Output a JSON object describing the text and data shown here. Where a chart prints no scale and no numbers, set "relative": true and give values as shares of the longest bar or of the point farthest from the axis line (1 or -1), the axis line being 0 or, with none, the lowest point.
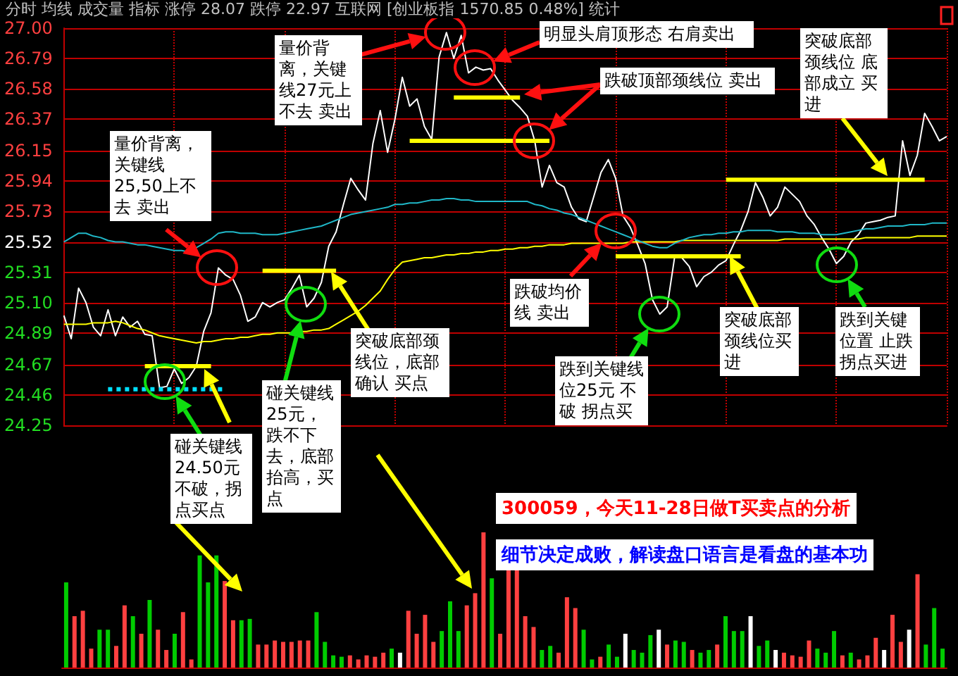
{
  "chart_data": [
    {
      "type": "line",
      "categories": [
        null,
        null,
        null,
        null,
        null,
        null,
        null,
        null,
        null,
        null,
        null,
        null,
        null,
        null,
        null,
        null,
        null,
        null,
        null,
        null,
        null,
        null,
        null,
        null,
        null,
        null,
        null,
        null,
        null,
        null,
        null,
        null,
        null,
        null,
        null,
        null,
        null,
        null,
        null,
        null,
        null,
        null,
        null,
        null,
        null,
        null,
        null,
        null,
        null,
        null,
        null,
        null,
        null,
        null,
        null,
        null,
        null,
        null,
        null,
        null,
        null,
        null,
        null,
        null,
        null,
        null,
        null,
        null,
        null,
        null,
        null,
        null,
        null,
        null,
        null,
        null,
        null,
        null,
        null,
        null,
        null,
        null,
        null,
        null,
        null,
        null,
        null,
        null,
        null,
        null,
        null,
        null,
        null,
        null,
        null,
        null,
        null,
        null,
        null,
        null,
        null,
        null,
        null,
        null,
        null,
        null,
        null,
        null,
        null,
        null,
        null,
        null,
        null,
        null,
        null,
        null,
        null,
        null,
        null,
        null,
        null
      ],
      "ylim": [
        24.25,
        27
      ],
      "yticks": [
        {
          "value": 27,
          "label": "27.00"
        },
        26.79,
        26.58,
        26.37,
        26.15,
        25.94,
        25.73,
        25.52,
        25.31,
        {
          "value": 25.1,
          "label": "25.10"
        },
        24.89,
        24.67,
        24.46,
        24.25
      ],
      "grid": true,
      "tick_labels": "y",
      "annotations": [
        "分时 均线 成交量 指标 涨停 28.07 跌停 22.97 互联网 [创业板指 1570.85 0.48%] 统计",
        "量价背离，关键线25,50上不去 卖出",
        "量价背离，关键线27元上不去 卖出",
        "明显头肩顶形态 右肩卖出",
        "跌破顶部颈线位 卖出",
        "突破底部颈线位 底部成立 买进",
        "跌破均价线 卖出",
        "跌到关键线位25元 不破 拐点买",
        "突破底部颈线位买进",
        "跌到关键位置 止跌拐点买进",
        "突破底部颈线位，底部确认 买点",
        "碰关键线25元，跌不下去，底部抬高，买点",
        "碰关键线24.50元不破，拐点买点",
        "300059，今天11-28日做T买卖点的分析",
        "细节决定成败，解读盘口语言是看盘的基本功"
      ],
      "series": [
        {
          "color": "#ffffff",
          "values": [
            25.01,
            24.85,
            25.2,
            25.1,
            24.93,
            24.87,
            25.05,
            24.87,
            25.0,
            24.93,
            24.97,
            24.88,
            24.87,
            24.51,
            24.52,
            24.64,
            24.54,
            24.58,
            24.66,
            24.9,
            25.03,
            25.34,
            25.29,
            25.26,
            25.15,
            24.97,
            25.0,
            25.1,
            25.07,
            25.1,
            25.12,
            25.2,
            25.29,
            25.07,
            25.13,
            25.24,
            25.49,
            25.59,
            25.78,
            25.96,
            25.88,
            25.81,
            26.2,
            26.43,
            26.14,
            26.37,
            26.66,
            26.46,
            26.51,
            26.32,
            26.23,
            26.8,
            26.97,
            26.79,
            26.95,
            26.69,
            26.73,
            26.71,
            26.72,
            26.64,
            26.57,
            26.5,
            26.45,
            26.39,
            26.22,
            25.9,
            26.05,
            25.93,
            25.9,
            25.76,
            25.68,
            25.66,
            25.83,
            26.0,
            26.09,
            25.96,
            25.7,
            25.62,
            25.5,
            25.37,
            25.12,
            25.02,
            25.07,
            25.41,
            25.41,
            25.35,
            25.21,
            25.28,
            25.31,
            25.36,
            25.39,
            25.5,
            25.6,
            25.73,
            25.93,
            25.83,
            25.7,
            25.76,
            25.9,
            25.85,
            25.8,
            25.7,
            25.64,
            25.55,
            25.47,
            25.37,
            25.42,
            25.52,
            25.57,
            25.65,
            25.66,
            25.67,
            25.69,
            25.7,
            26.22,
            25.98,
            26.12,
            26.41,
            26.32,
            26.22,
            26.25
          ]
        },
        {
          "color": "#ffff00",
          "values": [
            24.95,
            24.95,
            24.95,
            24.95,
            24.96,
            24.96,
            24.96,
            24.97,
            24.96,
            24.94,
            24.92,
            24.91,
            24.89,
            24.87,
            24.86,
            24.85,
            24.84,
            24.83,
            24.82,
            24.83,
            24.83,
            24.84,
            24.85,
            24.85,
            24.86,
            24.86,
            24.87,
            24.88,
            24.88,
            24.89,
            24.89,
            24.89,
            24.9,
            24.9,
            24.91,
            24.91,
            24.92,
            24.95,
            24.98,
            25.01,
            25.04,
            25.08,
            25.13,
            25.18,
            25.26,
            25.33,
            25.38,
            25.39,
            25.4,
            25.41,
            25.41,
            25.42,
            25.43,
            25.43,
            25.44,
            25.44,
            25.45,
            25.45,
            25.46,
            25.46,
            25.47,
            25.47,
            25.48,
            25.48,
            25.49,
            25.49,
            25.5,
            25.5,
            25.5,
            25.51,
            25.51,
            25.51,
            25.51,
            25.51,
            25.51,
            25.51,
            25.51,
            25.52,
            25.52,
            25.52,
            25.52,
            25.52,
            25.52,
            25.52,
            25.53,
            25.53,
            25.53,
            25.53,
            25.53,
            25.53,
            25.53,
            25.53,
            25.53,
            25.53,
            25.53,
            25.53,
            25.53,
            25.53,
            25.54,
            25.54,
            25.54,
            25.54,
            25.54,
            25.54,
            25.54,
            25.54,
            25.54,
            25.54,
            25.54,
            25.55,
            25.55,
            25.55,
            25.55,
            25.55,
            25.55,
            25.55,
            25.56,
            25.56,
            25.56,
            25.56,
            25.56
          ]
        },
        {
          "color": "#20b8c8",
          "values": [
            25.52,
            25.55,
            25.58,
            25.58,
            25.56,
            25.55,
            25.53,
            25.52,
            25.52,
            25.51,
            25.5,
            25.5,
            25.49,
            25.48,
            25.47,
            25.46,
            25.46,
            25.45,
            25.48,
            25.51,
            25.54,
            25.58,
            25.59,
            25.59,
            25.58,
            25.58,
            25.58,
            25.57,
            25.57,
            25.57,
            25.58,
            25.59,
            25.6,
            25.61,
            25.62,
            25.63,
            25.65,
            25.67,
            25.69,
            25.71,
            25.72,
            25.73,
            25.74,
            25.75,
            25.76,
            25.78,
            25.78,
            25.79,
            25.79,
            25.8,
            25.81,
            25.81,
            25.82,
            25.82,
            25.81,
            25.81,
            25.8,
            25.8,
            25.8,
            25.8,
            25.8,
            25.8,
            25.8,
            25.8,
            25.78,
            25.77,
            25.75,
            25.74,
            25.72,
            25.71,
            25.69,
            25.67,
            25.65,
            25.63,
            25.61,
            25.59,
            25.57,
            25.55,
            25.53,
            25.51,
            25.49,
            25.48,
            25.48,
            25.51,
            25.53,
            25.55,
            25.56,
            25.57,
            25.57,
            25.58,
            25.58,
            25.59,
            25.59,
            25.6,
            25.6,
            25.6,
            25.6,
            25.59,
            25.59,
            25.59,
            25.58,
            25.58,
            25.58,
            25.57,
            25.57,
            25.57,
            25.58,
            25.59,
            25.6,
            25.61,
            25.61,
            25.62,
            25.63,
            25.63,
            25.63,
            25.64,
            25.64,
            25.64,
            25.65,
            25.65,
            25.65
          ]
        },
        {
          "color": "#ffff00",
          "values": [
            null,
            null,
            null,
            null,
            null,
            null,
            null,
            null,
            null,
            null,
            null,
            24.66,
            24.66,
            24.66,
            24.66,
            24.66,
            24.66,
            24.66,
            24.66,
            24.66,
            24.66,
            null,
            null,
            null,
            null,
            null,
            null,
            null,
            null,
            null,
            null,
            null,
            null,
            null,
            null,
            null,
            null,
            null,
            null,
            null,
            null,
            null,
            null,
            null,
            null,
            null,
            null,
            null,
            null,
            null,
            null,
            null,
            null,
            null,
            null,
            null,
            null,
            null,
            null,
            null,
            null,
            null,
            null,
            null,
            null,
            null,
            null,
            null,
            null,
            null,
            null,
            null,
            null,
            null,
            null,
            null,
            null,
            null,
            null,
            null,
            null,
            null,
            null,
            null,
            null,
            null,
            null,
            null,
            null,
            null,
            null,
            null,
            null,
            null,
            null,
            null,
            null,
            null,
            null,
            null,
            null,
            null,
            null,
            null,
            null,
            null,
            null,
            null,
            null,
            null,
            null,
            null,
            null,
            null,
            null,
            null,
            null,
            null,
            null,
            null,
            null
          ]
        },
        {
          "color": "#ffff00",
          "values": [
            null,
            null,
            null,
            null,
            null,
            null,
            null,
            null,
            null,
            null,
            null,
            null,
            null,
            null,
            null,
            null,
            null,
            null,
            null,
            null,
            null,
            null,
            null,
            null,
            null,
            null,
            null,
            25.32,
            25.32,
            25.32,
            25.32,
            25.32,
            25.32,
            25.32,
            25.32,
            25.32,
            25.32,
            25.32,
            null,
            null,
            null,
            null,
            null,
            null,
            null,
            null,
            null,
            null,
            null,
            null,
            null,
            null,
            null,
            null,
            null,
            null,
            null,
            null,
            null,
            null,
            null,
            null,
            null,
            null,
            null,
            null,
            null,
            null,
            null,
            null,
            null,
            null,
            null,
            null,
            null,
            null,
            null,
            null,
            null,
            null,
            null,
            null,
            null,
            null,
            null,
            null,
            null,
            null,
            null,
            null,
            null,
            null,
            null,
            null,
            null,
            null,
            null,
            null,
            null,
            null,
            null,
            null,
            null,
            null,
            null,
            null,
            null,
            null,
            null,
            null,
            null,
            null,
            null,
            null,
            null,
            null,
            null,
            null,
            null,
            null,
            null
          ]
        },
        {
          "color": "#ffff00",
          "values": [
            null,
            null,
            null,
            null,
            null,
            null,
            null,
            null,
            null,
            null,
            null,
            null,
            null,
            null,
            null,
            null,
            null,
            null,
            null,
            null,
            null,
            null,
            null,
            null,
            null,
            null,
            null,
            null,
            null,
            null,
            null,
            null,
            null,
            null,
            null,
            null,
            null,
            null,
            null,
            null,
            null,
            null,
            null,
            null,
            null,
            null,
            null,
            null,
            null,
            null,
            null,
            null,
            null,
            26.52,
            26.52,
            26.52,
            26.52,
            26.52,
            26.52,
            26.52,
            26.52,
            26.52,
            26.52,
            null,
            null,
            null,
            null,
            null,
            null,
            null,
            null,
            null,
            null,
            null,
            null,
            null,
            null,
            null,
            null,
            null,
            null,
            null,
            null,
            null,
            null,
            null,
            null,
            null,
            null,
            null,
            null,
            null,
            null,
            null,
            null,
            null,
            null,
            null,
            null,
            null,
            null,
            null,
            null,
            null,
            null,
            null,
            null,
            null,
            null,
            null,
            null,
            null,
            null,
            null,
            null,
            null,
            null,
            null,
            null,
            null,
            null
          ]
        },
        {
          "color": "#ffff00",
          "values": [
            null,
            null,
            null,
            null,
            null,
            null,
            null,
            null,
            null,
            null,
            null,
            null,
            null,
            null,
            null,
            null,
            null,
            null,
            null,
            null,
            null,
            null,
            null,
            null,
            null,
            null,
            null,
            null,
            null,
            null,
            null,
            null,
            null,
            null,
            null,
            null,
            null,
            null,
            null,
            null,
            null,
            null,
            null,
            null,
            null,
            null,
            null,
            26.22,
            26.22,
            26.22,
            26.22,
            26.22,
            26.22,
            26.22,
            26.22,
            26.22,
            26.22,
            26.22,
            26.22,
            26.22,
            26.22,
            26.22,
            26.22,
            26.22,
            26.22,
            26.22,
            26.22,
            null,
            null,
            null,
            null,
            null,
            null,
            null,
            null,
            null,
            null,
            null,
            null,
            null,
            null,
            null,
            null,
            null,
            null,
            null,
            null,
            null,
            null,
            null,
            null,
            null,
            null,
            null,
            null,
            null,
            null,
            null,
            null,
            null,
            null,
            null,
            null,
            null,
            null,
            null,
            null,
            null,
            null,
            null,
            null,
            null,
            null,
            null,
            null,
            null,
            null,
            null,
            null,
            null,
            null
          ]
        },
        {
          "color": "#ffff00",
          "values": [
            null,
            null,
            null,
            null,
            null,
            null,
            null,
            null,
            null,
            null,
            null,
            null,
            null,
            null,
            null,
            null,
            null,
            null,
            null,
            null,
            null,
            null,
            null,
            null,
            null,
            null,
            null,
            null,
            null,
            null,
            null,
            null,
            null,
            null,
            null,
            null,
            null,
            null,
            null,
            null,
            null,
            null,
            null,
            null,
            null,
            null,
            null,
            null,
            null,
            null,
            null,
            null,
            null,
            null,
            null,
            null,
            null,
            null,
            null,
            null,
            null,
            null,
            null,
            null,
            null,
            null,
            null,
            null,
            null,
            null,
            null,
            null,
            null,
            null,
            null,
            null,
            null,
            null,
            null,
            null,
            null,
            null,
            null,
            null,
            null,
            null,
            null,
            null,
            null,
            null,
            25.95,
            25.95,
            25.95,
            25.95,
            25.95,
            25.95,
            25.95,
            25.95,
            25.95,
            25.95,
            25.95,
            25.95,
            25.95,
            25.95,
            25.95,
            25.95,
            25.95,
            25.95,
            25.95,
            25.95,
            25.95,
            25.95,
            25.95,
            25.95,
            25.95,
            25.95,
            25.95,
            25.95,
            null,
            null,
            null
          ]
        },
        {
          "color": "#ffff00",
          "values": [
            null,
            null,
            null,
            null,
            null,
            null,
            null,
            null,
            null,
            null,
            null,
            null,
            null,
            null,
            null,
            null,
            null,
            null,
            null,
            null,
            null,
            null,
            null,
            null,
            null,
            null,
            null,
            null,
            null,
            null,
            null,
            null,
            null,
            null,
            null,
            null,
            null,
            null,
            null,
            null,
            null,
            null,
            null,
            null,
            null,
            null,
            null,
            null,
            null,
            null,
            null,
            null,
            null,
            null,
            null,
            null,
            null,
            null,
            null,
            null,
            null,
            null,
            null,
            null,
            null,
            null,
            null,
            null,
            null,
            null,
            null,
            null,
            null,
            null,
            null,
            25.42,
            25.42,
            25.42,
            25.42,
            25.42,
            25.42,
            25.42,
            25.42,
            25.42,
            25.42,
            25.42,
            25.42,
            25.42,
            25.42,
            25.42,
            25.42,
            25.42,
            25.42,
            null,
            null,
            null,
            null,
            null,
            null,
            null,
            null,
            null,
            null,
            null,
            null,
            null,
            null,
            null,
            null,
            null,
            null,
            null,
            null,
            null,
            null,
            null,
            null,
            null,
            null,
            null,
            null
          ]
        },
        {
          "color": "#00e0ff",
          "line_style": "dotted",
          "values": [
            null,
            null,
            null,
            null,
            null,
            null,
            24.5,
            24.5,
            24.5,
            24.5,
            24.5,
            24.5,
            24.5,
            24.5,
            24.5,
            24.5,
            24.5,
            24.5,
            24.5,
            24.5,
            24.5,
            24.5,
            24.5,
            null,
            null,
            null,
            null,
            null,
            null,
            null,
            null,
            null,
            null,
            null,
            null,
            null,
            null,
            null,
            null,
            null,
            null,
            null,
            null,
            null,
            null,
            null,
            null,
            null,
            null,
            null,
            null,
            null,
            null,
            null,
            null,
            null,
            null,
            null,
            null,
            null,
            null,
            null,
            null,
            null,
            null,
            null,
            null,
            null,
            null,
            null,
            null,
            null,
            null,
            null,
            null,
            null,
            null,
            null,
            null,
            null,
            null,
            null,
            null,
            null,
            null,
            null,
            null,
            null,
            null,
            null,
            null,
            null,
            null,
            null,
            null,
            null,
            null,
            null,
            null,
            null,
            null,
            null,
            null,
            null,
            null,
            null,
            null,
            null,
            null,
            null,
            null,
            null,
            null,
            null,
            null,
            null,
            null,
            null,
            null,
            null,
            null
          ]
        }
      ]
    },
    {
      "type": "bar",
      "relative": true,
      "categories": [
        null,
        null,
        null,
        null,
        null,
        null,
        null,
        null,
        null,
        null,
        null,
        null,
        null,
        null,
        null,
        null,
        null,
        null,
        null,
        null,
        null,
        null,
        null,
        null,
        null,
        null,
        null,
        null,
        null,
        null,
        null,
        null,
        null,
        null,
        null,
        null,
        null,
        null,
        null,
        null,
        null,
        null,
        null,
        null,
        null,
        null,
        null,
        null,
        null,
        null,
        null,
        null,
        null,
        null,
        null,
        null,
        null,
        null,
        null,
        null,
        null,
        null,
        null,
        null,
        null,
        null,
        null,
        null,
        null,
        null,
        null,
        null,
        null,
        null,
        null,
        null,
        null,
        null,
        null,
        null,
        null,
        null,
        null,
        null,
        null,
        null,
        null,
        null,
        null,
        null,
        null,
        null,
        null,
        null,
        null,
        null,
        null,
        null,
        null,
        null,
        null,
        null,
        null,
        null,
        null,
        null
      ],
      "values": [
        0.63,
        0.38,
        0.42,
        0.14,
        0.28,
        0.28,
        0.16,
        0.46,
        0.38,
        0.25,
        0.5,
        0.28,
        0.13,
        0.25,
        0.41,
        0.06,
        0.83,
        0.63,
        0.83,
        0.64,
        0.35,
        0.35,
        0.36,
        0.17,
        0.17,
        0.2,
        0.19,
        0.19,
        0.2,
        0.2,
        0.41,
        0.19,
        0.09,
        0.08,
        0.09,
        0.06,
        0.09,
        0.08,
        0.11,
        0.14,
        0.11,
        0.42,
        0.25,
        0.39,
        0.19,
        0.27,
        0.49,
        0.27,
        0.46,
        0.55,
        1,
        0.66,
        0.25,
        0.72,
        0.72,
        0.38,
        0.3,
        0.13,
        0.16,
        0.11,
        0.52,
        0.44,
        0.28,
        0.06,
        0.08,
        0.17,
        0.08,
        0.25,
        0.13,
        0.11,
        0.24,
        0.28,
        0.17,
        0.2,
        0.19,
        0.13,
        0.11,
        0.13,
        0.17,
        0.38,
        0.27,
        0.27,
        0.38,
        0.16,
        0.2,
        0.13,
        0.11,
        0.09,
        0.08,
        0.2,
        0.14,
        0.11,
        0.27,
        0.09,
        0.11,
        0.06,
        0.09,
        0.22,
        0.13,
        0.39,
        0.19,
        0.28,
        0.69,
        0.17,
        0.44,
        0.14
      ],
      "colors": [
        "#00cc00",
        "#ff4040",
        "#ff4040",
        "#ff4040",
        "#00cc00",
        "#00cc00",
        "#ff4040",
        "#ff4040",
        "#00cc00",
        "#ff4040",
        "#00cc00",
        "#ff4040",
        "#ff4040",
        "#00cc00",
        "#ff4040",
        "#ff4040",
        "#00cc00",
        "#00cc00",
        "#00cc00",
        "#ff4040",
        "#ff4040",
        "#00cc00",
        "#00cc00",
        "#ff4040",
        "#ff4040",
        "#ff4040",
        "#ff4040",
        "#ff4040",
        "#ff4040",
        "#ff4040",
        "#00cc00",
        "#00cc00",
        "#00cc00",
        "#00cc00",
        "#ff4040",
        "#ff4040",
        "#ff4040",
        "#ff4040",
        "#ff4040",
        "#00cc00",
        "#ffffff",
        "#ff4040",
        "#ff4040",
        "#ff4040",
        "#ff4040",
        "#00cc00",
        "#00cc00",
        "#00cc00",
        "#ff4040",
        "#ff4040",
        "#ff4040",
        "#00cc00",
        "#ff4040",
        "#ff4040",
        "#ff4040",
        "#ff4040",
        "#ff4040",
        "#00cc00",
        "#00cc00",
        "#ff4040",
        "#ff4040",
        "#ff4040",
        "#00cc00",
        "#00cc00",
        "#ff4040",
        "#00cc00",
        "#00cc00",
        "#ffffff",
        "#00cc00",
        "#00cc00",
        "#00cc00",
        "#ffffff",
        "#ff4040",
        "#00cc00",
        "#00cc00",
        "#ff4040",
        "#00cc00",
        "#00cc00",
        "#ff4040",
        "#00cc00",
        "#00cc00",
        "#00cc00",
        "#ffffff",
        "#00cc00",
        "#00cc00",
        "#ffffff",
        "#ff4040",
        "#ff4040",
        "#ff4040",
        "#ff4040",
        "#00cc00",
        "#00cc00",
        "#00cc00",
        "#ff4040",
        "#00cc00",
        "#ff4040",
        "#ff4040",
        "#ff4040",
        "#ffffff",
        "#ff4040",
        "#ff4040",
        "#ffffff",
        "#ff4040",
        "#00cc00",
        "#00cc00",
        "#00cc00"
      ]
    }
  ]
}
